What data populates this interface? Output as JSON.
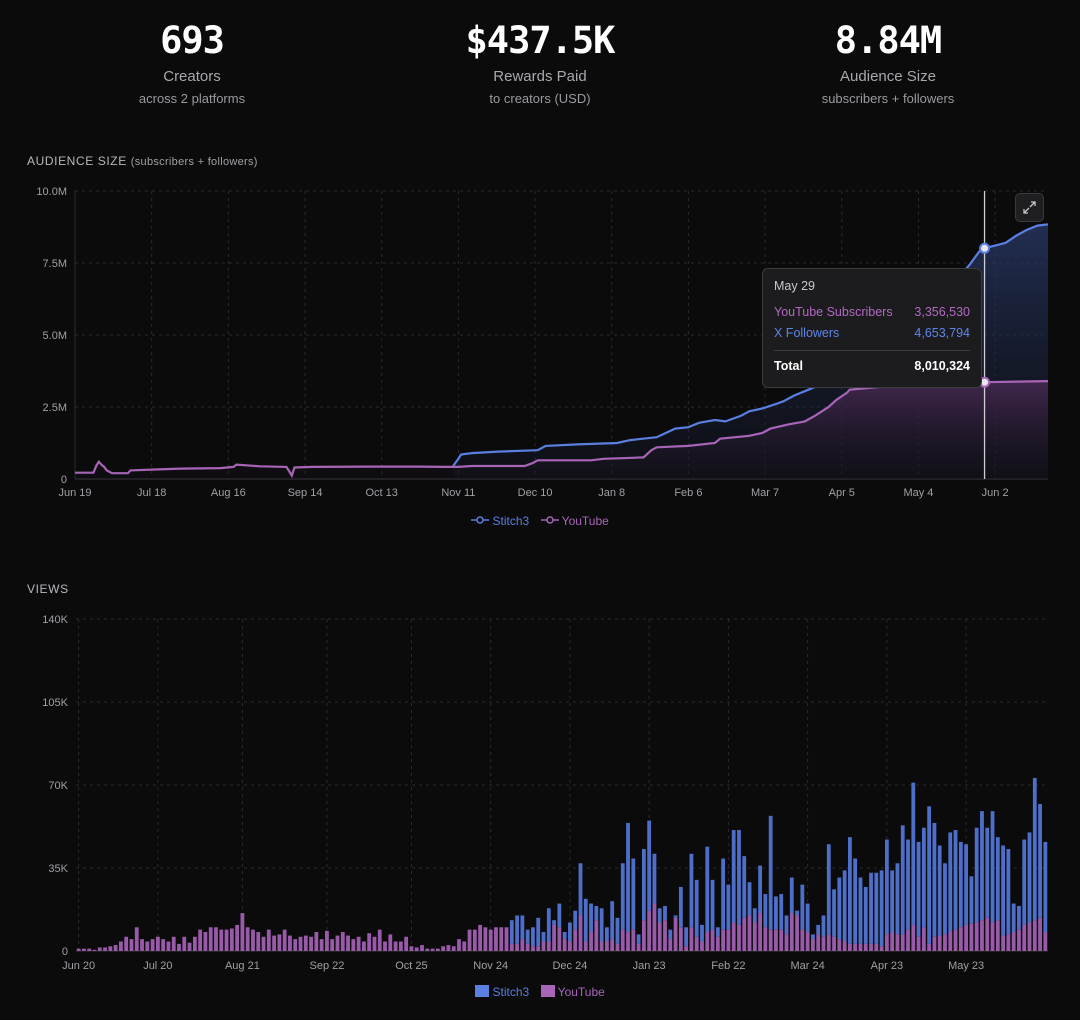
{
  "stats": [
    {
      "value": "693",
      "label": "Creators",
      "sub": "across 2 platforms"
    },
    {
      "value": "$437.5K",
      "label": "Rewards Paid",
      "sub": "to creators (USD)"
    },
    {
      "value": "8.84M",
      "label": "Audience Size",
      "sub": "subscribers + followers"
    }
  ],
  "colors": {
    "stitch3": "#5b7fe0",
    "youtube": "#a865b8",
    "background": "#0b0b0c"
  },
  "audience": {
    "title": "AUDIENCE SIZE",
    "title_note": "(subscribers + followers)",
    "expand_icon": "expand-icon",
    "tooltip": {
      "date": "May 29",
      "rows": [
        {
          "label": "YouTube Subscribers",
          "value": "3,356,530"
        },
        {
          "label": "X Followers",
          "value": "4,653,794"
        }
      ],
      "total_label": "Total",
      "total_value": "8,010,324"
    }
  },
  "views": {
    "title": "VIEWS"
  },
  "chart_data": [
    {
      "type": "line",
      "title": "AUDIENCE SIZE",
      "subtitle": "(subscribers + followers)",
      "ylim": [
        0,
        10
      ],
      "y_unit": "M",
      "y_ticks": [
        "0",
        "2.5M",
        "5.0M",
        "7.5M",
        "10.0M"
      ],
      "y_tick_values": [
        0,
        2.5,
        5,
        7.5,
        10
      ],
      "x_ticks": [
        "Jun 19",
        "Jul 18",
        "Aug 16",
        "Sep 14",
        "Oct 13",
        "Nov 11",
        "Dec 10",
        "Jan 8",
        "Feb 6",
        "Mar 7",
        "Apr 5",
        "May 4",
        "Jun 2"
      ],
      "x_tick_days": [
        0,
        29,
        58,
        87,
        116,
        145,
        174,
        203,
        232,
        261,
        290,
        319,
        348
      ],
      "legend": [
        "Stitch3",
        "YouTube"
      ],
      "cursor_day": 344,
      "series": [
        {
          "name": "Stitch3",
          "points": [
            [
              143,
              0.45
            ],
            [
              145,
              0.7
            ],
            [
              146,
              0.85
            ],
            [
              150,
              0.9
            ],
            [
              160,
              0.95
            ],
            [
              175,
              1.0
            ],
            [
              178,
              1.15
            ],
            [
              190,
              1.2
            ],
            [
              205,
              1.25
            ],
            [
              210,
              1.35
            ],
            [
              220,
              1.45
            ],
            [
              227,
              1.75
            ],
            [
              232,
              1.8
            ],
            [
              236,
              1.95
            ],
            [
              242,
              2.05
            ],
            [
              246,
              2.0
            ],
            [
              252,
              2.2
            ],
            [
              255,
              2.35
            ],
            [
              260,
              2.45
            ],
            [
              265,
              2.6
            ],
            [
              268,
              2.7
            ],
            [
              272,
              2.9
            ],
            [
              276,
              3.05
            ],
            [
              280,
              3.2
            ],
            [
              285,
              3.3
            ],
            [
              290,
              3.35
            ],
            [
              295,
              3.6
            ],
            [
              300,
              4.05
            ],
            [
              310,
              4.5
            ],
            [
              318,
              5.2
            ],
            [
              325,
              6.0
            ],
            [
              332,
              6.8
            ],
            [
              338,
              7.4
            ],
            [
              342,
              7.9
            ],
            [
              344,
              8.01
            ],
            [
              352,
              8.2
            ],
            [
              356,
              8.45
            ],
            [
              360,
              8.65
            ],
            [
              364,
              8.8
            ],
            [
              368,
              8.84
            ]
          ]
        },
        {
          "name": "YouTube",
          "points": [
            [
              0,
              0.22
            ],
            [
              7,
              0.22
            ],
            [
              8,
              0.45
            ],
            [
              9,
              0.6
            ],
            [
              10,
              0.5
            ],
            [
              11,
              0.42
            ],
            [
              12,
              0.3
            ],
            [
              14,
              0.2
            ],
            [
              20,
              0.2
            ],
            [
              21,
              0.3
            ],
            [
              30,
              0.33
            ],
            [
              40,
              0.36
            ],
            [
              55,
              0.38
            ],
            [
              60,
              0.42
            ],
            [
              61,
              0.5
            ],
            [
              70,
              0.44
            ],
            [
              80,
              0.42
            ],
            [
              82,
              0.12
            ],
            [
              83,
              0.4
            ],
            [
              90,
              0.42
            ],
            [
              110,
              0.43
            ],
            [
              130,
              0.43
            ],
            [
              140,
              0.42
            ],
            [
              145,
              0.42
            ],
            [
              150,
              0.45
            ],
            [
              170,
              0.45
            ],
            [
              173,
              0.55
            ],
            [
              175,
              0.65
            ],
            [
              195,
              0.65
            ],
            [
              200,
              0.7
            ],
            [
              215,
              0.75
            ],
            [
              218,
              1.0
            ],
            [
              220,
              1.1
            ],
            [
              232,
              1.15
            ],
            [
              242,
              1.25
            ],
            [
              244,
              1.4
            ],
            [
              255,
              1.5
            ],
            [
              260,
              1.6
            ],
            [
              263,
              1.75
            ],
            [
              270,
              1.9
            ],
            [
              276,
              2.0
            ],
            [
              280,
              2.2
            ],
            [
              285,
              2.5
            ],
            [
              288,
              2.75
            ],
            [
              292,
              3.0
            ],
            [
              293,
              3.1
            ],
            [
              305,
              3.2
            ],
            [
              320,
              3.25
            ],
            [
              335,
              3.3
            ],
            [
              344,
              3.36
            ],
            [
              368,
              3.4
            ]
          ]
        }
      ]
    },
    {
      "type": "bar",
      "title": "VIEWS",
      "stacked": true,
      "ylim": [
        0,
        140
      ],
      "y_unit": "K",
      "y_ticks": [
        "0",
        "35K",
        "70K",
        "105K",
        "140K"
      ],
      "y_tick_values": [
        0,
        35,
        70,
        105,
        140
      ],
      "x_ticks": [
        "Jun 20",
        "Jul 20",
        "Aug 21",
        "Sep 22",
        "Oct 25",
        "Nov 24",
        "Dec 24",
        "Jan 23",
        "Feb 22",
        "Mar 24",
        "Apr 23",
        "May 23"
      ],
      "x_tick_index": [
        0,
        30,
        62,
        94,
        127,
        157,
        187,
        217,
        247,
        277,
        307,
        337
      ],
      "x_tick_bar": [
        0,
        15,
        31,
        47,
        63,
        78,
        93,
        108,
        123,
        138,
        153,
        168
      ],
      "legend": [
        "Stitch3",
        "YouTube"
      ],
      "bar_count": 184,
      "series": [
        {
          "name": "YouTube",
          "values": [
            1,
            1,
            1,
            0.5,
            1.5,
            1.5,
            2,
            2.5,
            4,
            6,
            5,
            10,
            5,
            4,
            5,
            6,
            5,
            4,
            6,
            3,
            6,
            3.5,
            6,
            9,
            8,
            10,
            10,
            9,
            9,
            9.5,
            11,
            16,
            10,
            9,
            8,
            6,
            9,
            6.5,
            7,
            9,
            6.5,
            5,
            6,
            6.5,
            6,
            8,
            5,
            8.5,
            5,
            6.5,
            8,
            6.5,
            5,
            6,
            4,
            7.5,
            6,
            9,
            4,
            7,
            4,
            4,
            6,
            2,
            1.5,
            2.5,
            1,
            1,
            1,
            2,
            2.5,
            2,
            5,
            4,
            9,
            9,
            11,
            10,
            9,
            10,
            10,
            10,
            3,
            3,
            5,
            3,
            2,
            2,
            4,
            4,
            11,
            10,
            5,
            4,
            9,
            15,
            4,
            8,
            13,
            4,
            4,
            5,
            3,
            9,
            8,
            9,
            3,
            13,
            17,
            20,
            12,
            13,
            5,
            14,
            10,
            2,
            10,
            6,
            4,
            8,
            9,
            6,
            9,
            9,
            12,
            11,
            14,
            15,
            12,
            16,
            10,
            9,
            9,
            9,
            7,
            16,
            15,
            9,
            8,
            5,
            7,
            6,
            7,
            6,
            5,
            4,
            3,
            3,
            3,
            3,
            3,
            3,
            2,
            7,
            8,
            7,
            7,
            9,
            11,
            6,
            10,
            3,
            6,
            6.5,
            7,
            8,
            9,
            10,
            11,
            11.5,
            12,
            13,
            14,
            12,
            13,
            6.5,
            7,
            8,
            9,
            11,
            12,
            13,
            14,
            8
          ]
        },
        {
          "name": "Stitch3",
          "values": [
            0,
            0,
            0,
            0,
            0,
            0,
            0,
            0,
            0,
            0,
            0,
            0,
            0,
            0,
            0,
            0,
            0,
            0,
            0,
            0,
            0,
            0,
            0,
            0,
            0,
            0,
            0,
            0,
            0,
            0,
            0,
            0,
            0,
            0,
            0,
            0,
            0,
            0,
            0,
            0,
            0,
            0,
            0,
            0,
            0,
            0,
            0,
            0,
            0,
            0,
            0,
            0,
            0,
            0,
            0,
            0,
            0,
            0,
            0,
            0,
            0,
            0,
            0,
            0,
            0,
            0,
            0,
            0,
            0,
            0,
            0,
            0,
            0,
            0,
            0,
            0,
            0,
            0,
            0,
            0,
            0,
            0,
            10,
            12,
            10,
            6,
            8,
            12,
            4,
            14,
            2,
            10,
            3,
            8,
            8,
            22,
            18,
            12,
            6,
            14,
            6,
            16,
            11,
            28,
            46,
            30,
            4,
            30,
            38,
            21,
            6,
            6,
            4,
            1,
            17,
            8,
            31,
            24,
            7,
            36,
            21,
            4,
            30,
            19,
            39,
            40,
            26,
            14,
            6,
            20,
            14,
            48,
            14,
            15,
            8,
            15,
            2,
            19,
            12,
            2,
            4,
            9,
            38,
            20,
            26,
            30,
            45,
            36,
            28,
            24,
            30,
            30,
            32,
            40,
            26,
            30,
            46,
            38,
            60,
            40,
            42,
            58,
            48,
            38,
            30,
            42,
            42,
            36,
            34,
            20,
            40,
            46,
            38,
            47,
            35,
            38,
            36,
            12,
            10,
            36,
            38,
            60,
            48,
            38,
            36
          ]
        }
      ]
    }
  ]
}
